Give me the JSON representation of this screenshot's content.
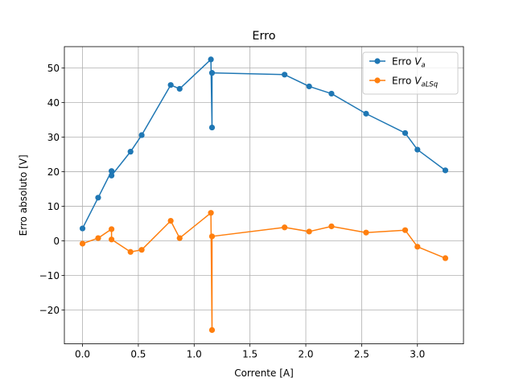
{
  "chart_data": {
    "type": "line",
    "title": "Erro",
    "xlabel": "Corrente [A]",
    "ylabel": "Erro absoluto [V]",
    "xlim": [
      -0.1625,
      3.4125
    ],
    "ylim": [
      -29.8,
      56.2
    ],
    "xticks": [
      0.0,
      0.5,
      1.0,
      1.5,
      2.0,
      2.5,
      3.0
    ],
    "xtick_labels": [
      "0.0",
      "0.5",
      "1.0",
      "1.5",
      "2.0",
      "2.5",
      "3.0"
    ],
    "yticks": [
      -20,
      -10,
      0,
      10,
      20,
      30,
      40,
      50
    ],
    "ytick_labels": [
      "−20",
      "−10",
      "0",
      "10",
      "20",
      "30",
      "40",
      "50"
    ],
    "grid": true,
    "legend_position": "top-right",
    "x": [
      0.0,
      0.14,
      0.26,
      0.26,
      0.43,
      0.53,
      0.79,
      0.87,
      1.15,
      1.16,
      1.16,
      1.81,
      2.03,
      2.23,
      2.54,
      2.89,
      3.0,
      3.25
    ],
    "series": [
      {
        "name": "Erro V_a",
        "name_main": "Erro ",
        "name_var": "V",
        "name_sub": "a",
        "color": "#1f77b4",
        "values": [
          3.6,
          12.5,
          20.2,
          18.9,
          25.8,
          30.6,
          45.1,
          44.0,
          52.5,
          32.8,
          48.6,
          48.1,
          44.7,
          42.6,
          36.8,
          31.2,
          26.4,
          20.4
        ]
      },
      {
        "name": "Erro V_aLSq",
        "name_main": "Erro ",
        "name_var": "V",
        "name_sub": "aLSq",
        "color": "#ff7f0e",
        "values": [
          -0.8,
          0.8,
          3.4,
          0.4,
          -3.2,
          -2.6,
          5.8,
          0.8,
          8.1,
          -25.8,
          1.3,
          3.9,
          2.7,
          4.2,
          2.4,
          3.1,
          -1.7,
          -5.0
        ]
      }
    ]
  }
}
